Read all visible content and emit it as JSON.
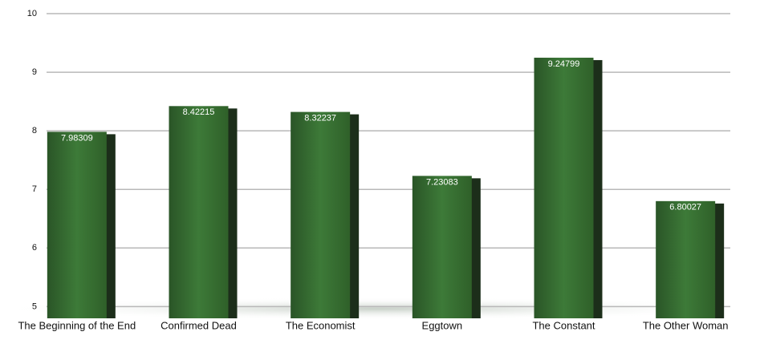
{
  "chart_data": {
    "type": "bar",
    "categories": [
      "The Beginning of the End",
      "Confirmed Dead",
      "The Economist",
      "Eggtown",
      "The Constant",
      "The Other Woman"
    ],
    "values": [
      7.98309,
      8.42215,
      8.32237,
      7.23083,
      9.24799,
      6.80027
    ],
    "color": "#3d7a38",
    "ylim": [
      4.8,
      10
    ],
    "yticks": [
      5,
      6,
      7,
      8,
      9,
      10
    ],
    "grid": true
  }
}
